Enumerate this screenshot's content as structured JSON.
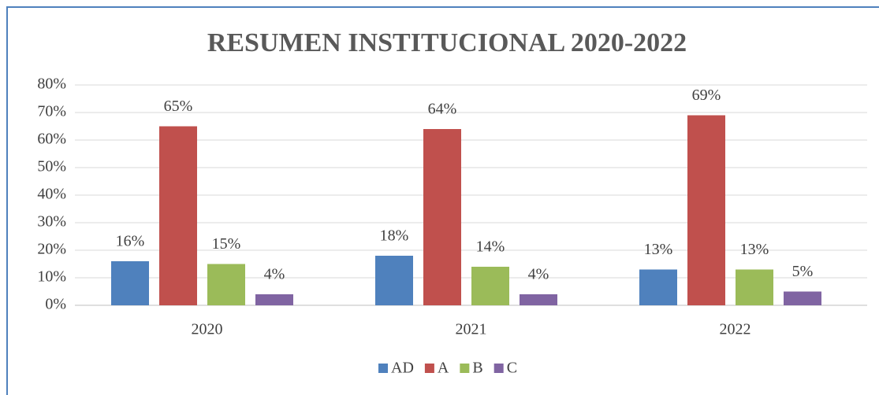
{
  "chart_data": {
    "type": "bar",
    "title": "RESUMEN INSTITUCIONAL 2020-2022",
    "categories": [
      "2020",
      "2021",
      "2022"
    ],
    "series": [
      {
        "name": "AD",
        "color": "#4f81bd",
        "values": [
          16,
          18,
          13
        ],
        "value_labels": [
          "16%",
          "18%",
          "13%"
        ]
      },
      {
        "name": "A",
        "color": "#c0504d",
        "values": [
          65,
          64,
          69
        ],
        "value_labels": [
          "65%",
          "64%",
          "69%"
        ]
      },
      {
        "name": "B",
        "color": "#9bbb59",
        "values": [
          15,
          14,
          13
        ],
        "value_labels": [
          "15%",
          "14%",
          "13%"
        ]
      },
      {
        "name": "C",
        "color": "#8064a2",
        "values": [
          4,
          4,
          5
        ],
        "value_labels": [
          "4%",
          "4%",
          "5%"
        ]
      }
    ],
    "ylim": [
      0,
      80
    ],
    "yticks": [
      {
        "value": 0,
        "label": "0%"
      },
      {
        "value": 10,
        "label": "10%"
      },
      {
        "value": 20,
        "label": "20%"
      },
      {
        "value": 30,
        "label": "30%"
      },
      {
        "value": 40,
        "label": "40%"
      },
      {
        "value": 50,
        "label": "50%"
      },
      {
        "value": 60,
        "label": "60%"
      },
      {
        "value": 70,
        "label": "70%"
      },
      {
        "value": 80,
        "label": "80%"
      }
    ],
    "grid": true,
    "legend": "bottom"
  }
}
